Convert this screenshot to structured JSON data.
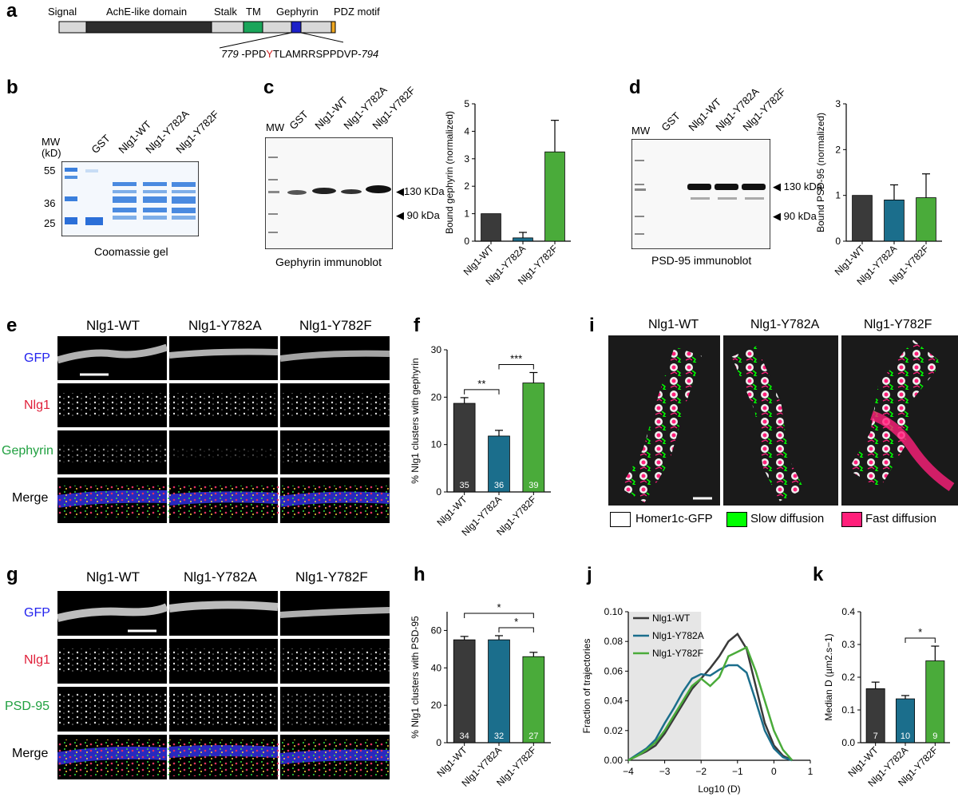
{
  "panel_a": {
    "label": "a",
    "domains": [
      "Signal",
      "AchE-like domain",
      "Stalk",
      "TM",
      "Gephyrin",
      "PDZ motif"
    ],
    "seq_start": "779",
    "seq_pre": " -PPD",
    "seq_highlight": "Y",
    "seq_post": "TLAMRRSPPDVP-",
    "seq_end": "794"
  },
  "panel_b": {
    "label": "b",
    "mw_label": "MW",
    "kd_label": "(kD)",
    "lanes": [
      "GST",
      "Nlg1-WT",
      "Nlg1-Y782A",
      "Nlg1-Y782F"
    ],
    "markers": [
      "55",
      "36",
      "25"
    ],
    "caption": "Coomassie gel"
  },
  "panel_c": {
    "label": "c",
    "lanes": [
      "MW",
      "GST",
      "Nlg1-WT",
      "Nlg1-Y782A",
      "Nlg1-Y782F"
    ],
    "band_labels": [
      "◀130 KDa",
      "◀ 90 kDa"
    ],
    "caption": "Gephyrin immunoblot"
  },
  "panel_d": {
    "label": "d",
    "lanes": [
      "MW",
      "GST",
      "Nlg1-WT",
      "Nlg1-Y782A",
      "Nlg1-Y782F"
    ],
    "band_labels": [
      "◀ 130 kDa",
      "◀ 90 kDa"
    ],
    "caption": "PSD-95 immunoblot"
  },
  "panel_e": {
    "label": "e",
    "columns": [
      "Nlg1-WT",
      "Nlg1-Y782A",
      "Nlg1-Y782F"
    ],
    "rows": [
      "GFP",
      "Nlg1",
      "Gephyrin",
      "Merge"
    ]
  },
  "panel_g": {
    "label": "g",
    "columns": [
      "Nlg1-WT",
      "Nlg1-Y782A",
      "Nlg1-Y782F"
    ],
    "rows": [
      "GFP",
      "Nlg1",
      "PSD-95",
      "Merge"
    ]
  },
  "panel_i": {
    "label": "i",
    "columns": [
      "Nlg1-WT",
      "Nlg1-Y782A",
      "Nlg1-Y782F"
    ],
    "legend": [
      "Homer1c-GFP",
      "Slow diffusion",
      "Fast diffusion"
    ]
  },
  "panel_labels": {
    "f": "f",
    "h": "h",
    "j": "j",
    "k": "k"
  },
  "colors": {
    "wt": "#3a3a3a",
    "y782a": "#1b6e8c",
    "y782f": "#4aab3a",
    "slow": "#00ff00",
    "fast": "#ff1f7a",
    "seq_red": "#d02020",
    "tm": "#1aa55a",
    "geph": "#1c20c8",
    "pdz": "#f0a820"
  },
  "chart_data": [
    {
      "type": "bar",
      "panel": "c",
      "categories": [
        "Nlg1-WT",
        "Nlg1-Y782A",
        "Nlg1-Y782F"
      ],
      "values": [
        1.0,
        0.12,
        3.25
      ],
      "errors": [
        0,
        0.2,
        1.15
      ],
      "ylabel": "Bound gephyrin (normalized)",
      "ylim": [
        0,
        5
      ],
      "yticks": [
        "0",
        "1",
        "2",
        "3",
        "4",
        "5"
      ]
    },
    {
      "type": "bar",
      "panel": "d",
      "categories": [
        "Nlg1-WT",
        "Nlg1-Y782A",
        "Nlg1-Y782F"
      ],
      "values": [
        1.0,
        0.9,
        0.95
      ],
      "errors": [
        0,
        0.33,
        0.52
      ],
      "ylabel": "Bound PSD-95 (normalized)",
      "ylim": [
        0,
        3
      ],
      "yticks": [
        "0",
        "1",
        "2",
        "3"
      ]
    },
    {
      "type": "bar",
      "panel": "f",
      "categories": [
        "Nlg1-WT",
        "Nlg1-Y782A",
        "Nlg1-Y782F"
      ],
      "values": [
        18.7,
        11.8,
        23.0
      ],
      "errors": [
        1.2,
        1.2,
        2.2
      ],
      "n": [
        "35",
        "36",
        "39"
      ],
      "ylabel": "% Nlg1 clusters with gephyrin",
      "ylim": [
        0,
        30
      ],
      "yticks": [
        "0",
        "10",
        "20",
        "30"
      ],
      "significance": [
        {
          "from": 0,
          "to": 1,
          "label": "**"
        },
        {
          "from": 1,
          "to": 2,
          "label": "***"
        }
      ]
    },
    {
      "type": "bar",
      "panel": "h",
      "categories": [
        "Nlg1-WT",
        "Nlg1-Y782A",
        "Nlg1-Y782F"
      ],
      "values": [
        55.0,
        55.0,
        46.0
      ],
      "errors": [
        1.8,
        2.2,
        2.3
      ],
      "n": [
        "34",
        "32",
        "27"
      ],
      "ylabel": "% Nlg1 clusters with PSD-95",
      "ylim": [
        0,
        70
      ],
      "yticks": [
        "0",
        "20",
        "40",
        "60"
      ],
      "significance": [
        {
          "from": 0,
          "to": 2,
          "label": "*"
        },
        {
          "from": 1,
          "to": 2,
          "label": "*"
        }
      ]
    },
    {
      "type": "line",
      "panel": "j",
      "x": [
        -4,
        -3.75,
        -3.5,
        -3.25,
        -3,
        -2.75,
        -2.5,
        -2.25,
        -2,
        -1.75,
        -1.5,
        -1.25,
        -1,
        -0.75,
        -0.5,
        -0.25,
        0,
        0.25,
        0.5
      ],
      "series": [
        {
          "name": "Nlg1-WT",
          "values": [
            0,
            0.003,
            0.006,
            0.01,
            0.018,
            0.028,
            0.038,
            0.048,
            0.055,
            0.062,
            0.07,
            0.08,
            0.085,
            0.075,
            0.05,
            0.025,
            0.01,
            0.003,
            0
          ]
        },
        {
          "name": "Nlg1-Y782A",
          "values": [
            0,
            0.004,
            0.008,
            0.014,
            0.025,
            0.035,
            0.046,
            0.055,
            0.058,
            0.057,
            0.061,
            0.064,
            0.064,
            0.059,
            0.04,
            0.02,
            0.008,
            0.002,
            0
          ]
        },
        {
          "name": "Nlg1-Y782F",
          "values": [
            0,
            0.003,
            0.007,
            0.012,
            0.02,
            0.03,
            0.04,
            0.05,
            0.055,
            0.05,
            0.056,
            0.07,
            0.073,
            0.076,
            0.06,
            0.04,
            0.02,
            0.007,
            0
          ]
        }
      ],
      "xlabel": "Log10 (D)",
      "ylabel": "Fraction of trajectories",
      "xlim": [
        -4,
        1
      ],
      "ylim": [
        0,
        0.1
      ],
      "xticks": [
        "−4",
        "−3",
        "−2",
        "−1",
        "0",
        "1"
      ],
      "yticks": [
        "0.00",
        "0.02",
        "0.04",
        "0.06",
        "0.08",
        "0.10"
      ],
      "shaded_region": [
        -4,
        -2
      ],
      "legend_position": "top-left"
    },
    {
      "type": "bar",
      "panel": "k",
      "categories": [
        "Nlg1-WT",
        "Nlg1-Y782A",
        "Nlg1-Y782F"
      ],
      "values": [
        0.165,
        0.134,
        0.25
      ],
      "errors": [
        0.02,
        0.01,
        0.045
      ],
      "n": [
        "7",
        "10",
        "9"
      ],
      "ylabel": "Median D (µm2.s−1)",
      "ylim": [
        0,
        0.4
      ],
      "yticks": [
        "0.0",
        "0.1",
        "0.2",
        "0.3",
        "0.4"
      ],
      "significance": [
        {
          "from": 1,
          "to": 2,
          "label": "*"
        }
      ]
    }
  ]
}
